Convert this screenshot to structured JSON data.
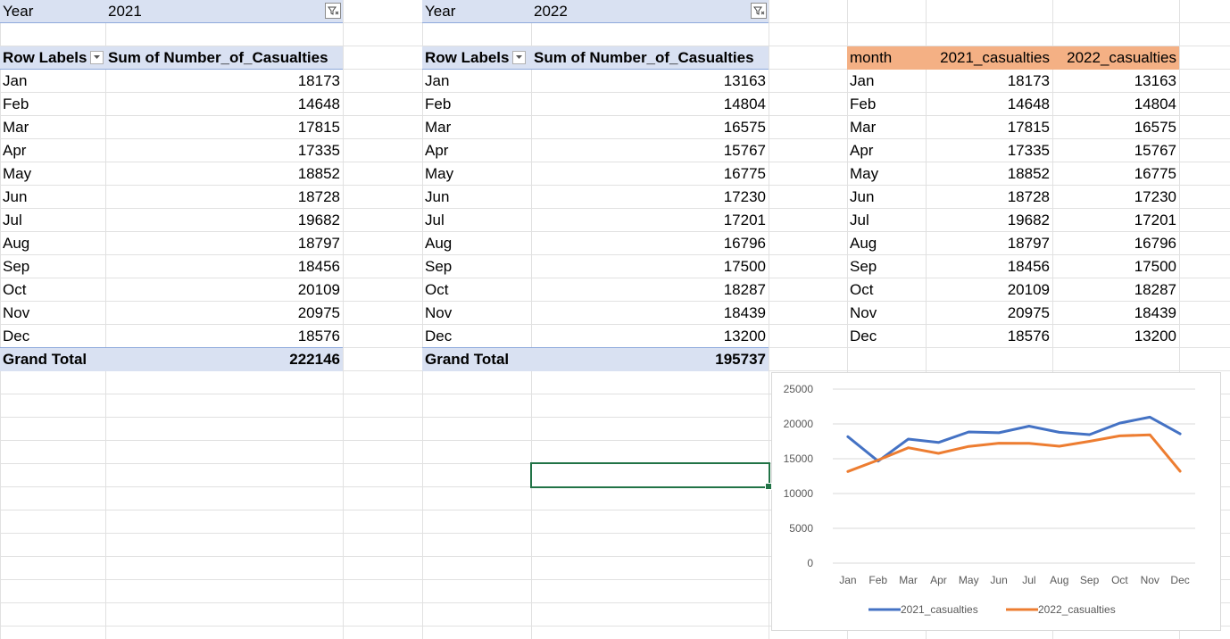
{
  "pivot_2021": {
    "filter_label": "Year",
    "filter_value": "2021",
    "row_labels_header": "Row Labels",
    "value_header": "Sum of Number_of_Casualties",
    "rows": [
      {
        "month": "Jan",
        "value": "18173"
      },
      {
        "month": "Feb",
        "value": "14648"
      },
      {
        "month": "Mar",
        "value": "17815"
      },
      {
        "month": "Apr",
        "value": "17335"
      },
      {
        "month": "May",
        "value": "18852"
      },
      {
        "month": "Jun",
        "value": "18728"
      },
      {
        "month": "Jul",
        "value": "19682"
      },
      {
        "month": "Aug",
        "value": "18797"
      },
      {
        "month": "Sep",
        "value": "18456"
      },
      {
        "month": "Oct",
        "value": "20109"
      },
      {
        "month": "Nov",
        "value": "20975"
      },
      {
        "month": "Dec",
        "value": "18576"
      }
    ],
    "grand_total_label": "Grand Total",
    "grand_total_value": "222146"
  },
  "pivot_2022": {
    "filter_label": "Year",
    "filter_value": "2022",
    "row_labels_header": "Row Labels",
    "value_header": "Sum of Number_of_Casualties",
    "rows": [
      {
        "month": "Jan",
        "value": "13163"
      },
      {
        "month": "Feb",
        "value": "14804"
      },
      {
        "month": "Mar",
        "value": "16575"
      },
      {
        "month": "Apr",
        "value": "15767"
      },
      {
        "month": "May",
        "value": "16775"
      },
      {
        "month": "Jun",
        "value": "17230"
      },
      {
        "month": "Jul",
        "value": "17201"
      },
      {
        "month": "Aug",
        "value": "16796"
      },
      {
        "month": "Sep",
        "value": "17500"
      },
      {
        "month": "Oct",
        "value": "18287"
      },
      {
        "month": "Nov",
        "value": "18439"
      },
      {
        "month": "Dec",
        "value": "13200"
      }
    ],
    "grand_total_label": "Grand Total",
    "grand_total_value": "195737"
  },
  "summary_table": {
    "headers": [
      "month",
      "2021_casualties",
      "2022_casualties"
    ],
    "rows": [
      [
        "Jan",
        "18173",
        "13163"
      ],
      [
        "Feb",
        "14648",
        "14804"
      ],
      [
        "Mar",
        "17815",
        "16575"
      ],
      [
        "Apr",
        "17335",
        "15767"
      ],
      [
        "May",
        "18852",
        "16775"
      ],
      [
        "Jun",
        "18728",
        "17230"
      ],
      [
        "Jul",
        "19682",
        "17201"
      ],
      [
        "Aug",
        "18797",
        "16796"
      ],
      [
        "Sep",
        "18456",
        "17500"
      ],
      [
        "Oct",
        "20109",
        "18287"
      ],
      [
        "Nov",
        "20975",
        "18439"
      ],
      [
        "Dec",
        "18576",
        "13200"
      ]
    ]
  },
  "colors": {
    "pivot_header_fill": "#d9e1f2",
    "table_header_fill": "#f4b084",
    "gridline": "#e1e1e1",
    "series_2021": "#4472c4",
    "series_2022": "#ed7d31",
    "selection": "#217346"
  },
  "icons": {
    "filter": "filter-funnel-icon",
    "dropdown": "dropdown-arrow-icon"
  },
  "chart_data": {
    "type": "line",
    "categories": [
      "Jan",
      "Feb",
      "Mar",
      "Apr",
      "May",
      "Jun",
      "Jul",
      "Aug",
      "Sep",
      "Oct",
      "Nov",
      "Dec"
    ],
    "series": [
      {
        "name": "2021_casualties",
        "values": [
          18173,
          14648,
          17815,
          17335,
          18852,
          18728,
          19682,
          18797,
          18456,
          20109,
          20975,
          18576
        ]
      },
      {
        "name": "2022_casualties",
        "values": [
          13163,
          14804,
          16575,
          15767,
          16775,
          17230,
          17201,
          16796,
          17500,
          18287,
          18439,
          13200
        ]
      }
    ],
    "ylim": [
      0,
      25000
    ],
    "yticks": [
      "25000",
      "20000",
      "15000",
      "10000",
      "5000",
      "0"
    ],
    "title": "",
    "xlabel": "",
    "ylabel": "",
    "grid": true,
    "legend_position": "bottom"
  }
}
